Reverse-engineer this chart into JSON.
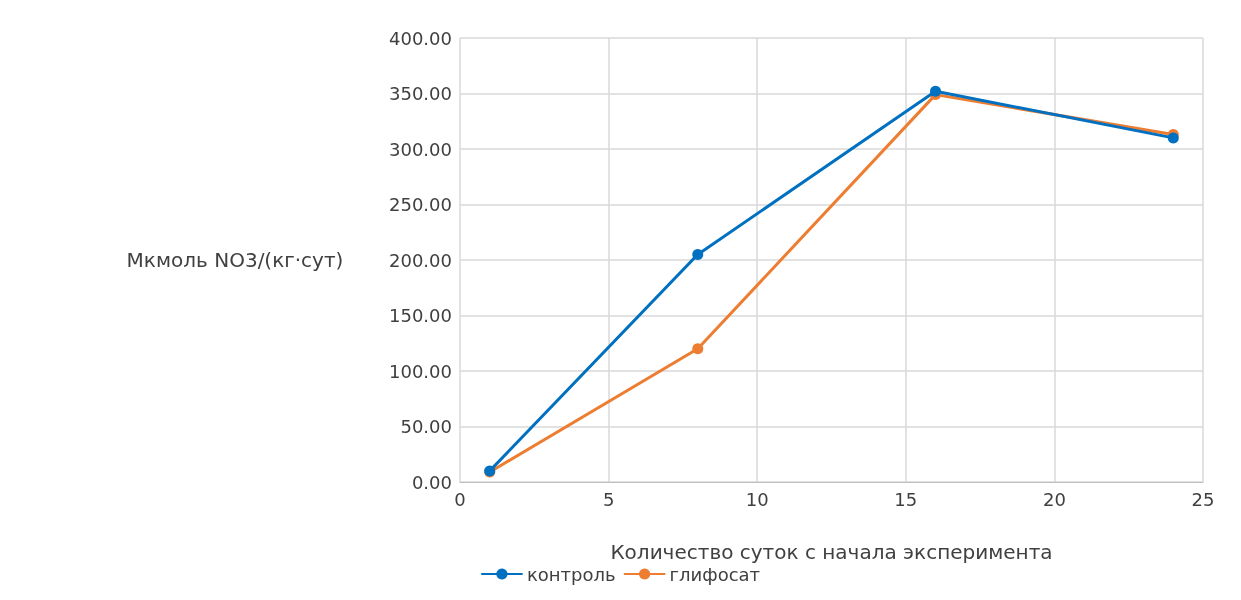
{
  "chart_data": {
    "type": "line",
    "xlabel": "Количество суток с начала эксперимента",
    "ylabel": "Мкмоль NO3/(кг·сут)",
    "x": [
      1,
      8,
      16,
      24
    ],
    "series": [
      {
        "name": "контроль",
        "color": "#0070c0",
        "values": [
          10,
          205,
          352,
          310
        ]
      },
      {
        "name": "глифосат",
        "color": "#ed7d31",
        "values": [
          9,
          120,
          349,
          313
        ]
      }
    ],
    "xlim": [
      0,
      25
    ],
    "xticks": [
      0,
      5,
      10,
      15,
      20,
      25
    ],
    "ylim": [
      0,
      400
    ],
    "yticks": [
      {
        "value": 0,
        "label": "0.00"
      },
      {
        "value": 50,
        "label": "50.00"
      },
      {
        "value": 100,
        "label": "100.00"
      },
      {
        "value": 150,
        "label": "150.00"
      },
      {
        "value": 200,
        "label": "200.00"
      },
      {
        "value": 250,
        "label": "250.00"
      },
      {
        "value": 300,
        "label": "300.00"
      },
      {
        "value": 350,
        "label": "350.00"
      },
      {
        "value": 400,
        "label": "400.00"
      }
    ],
    "grid": true,
    "legend": "bottom",
    "marker": "circle",
    "line_style": "solid"
  }
}
